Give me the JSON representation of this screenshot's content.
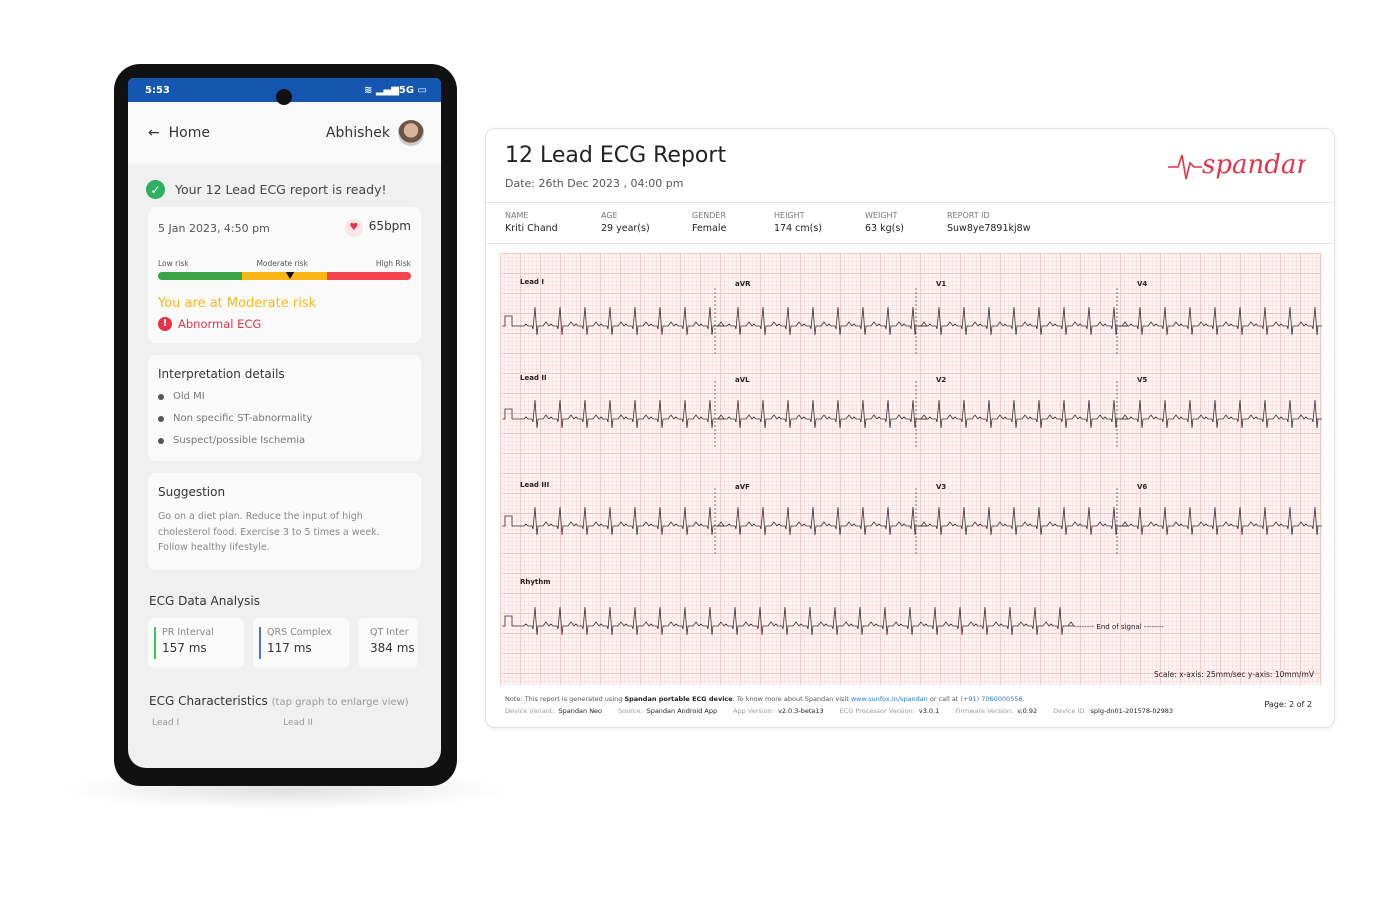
{
  "phone": {
    "status": {
      "time": "5:53",
      "network": "5G",
      "icons": [
        "wifi-icon",
        "signal-icon",
        "battery-icon"
      ]
    },
    "appbar": {
      "back_label": "Home",
      "user_name": "Abhishek"
    },
    "ready_message": "Your 12 Lead ECG report is ready!",
    "summary": {
      "datetime": "5 Jan 2023, 4:50 pm",
      "heart_rate": "65bpm",
      "risk_labels": [
        "Low risk",
        "Moderate risk",
        "High Risk"
      ],
      "risk_level_fraction": 0.52,
      "risk_text": "You are at Moderate risk",
      "ecg_status": "Abnormal ECG"
    },
    "interpretation": {
      "title": "Interpretation details",
      "items": [
        "Old MI",
        "Non specific ST-abnormality",
        "Suspect/possible Ischemia"
      ]
    },
    "suggestion": {
      "title": "Suggestion",
      "text": "Go on a diet plan. Reduce the input of high cholesterol food. Exercise 3 to 5 times a week. Follow healthy lifestyle."
    },
    "analysis": {
      "title": "ECG Data Analysis",
      "tiles": [
        {
          "label": "PR Interval",
          "value": "157 ms",
          "color": "#3cc45a"
        },
        {
          "label": "QRS Complex",
          "value": "117 ms",
          "color": "#4a78c8"
        },
        {
          "label": "QT Inter",
          "value": "384 ms",
          "color": "#f08a30"
        }
      ]
    },
    "characteristics": {
      "title": "ECG Characteristics",
      "hint": "(tap graph to enlarge view)",
      "leads": [
        "Lead I",
        "Lead II"
      ]
    }
  },
  "report": {
    "title": "12 Lead ECG Report",
    "date": "Date: 26th Dec 2023 , 04:00 pm",
    "logo_text": "spandan",
    "patient": [
      {
        "k": "NAME",
        "v": "Kriti Chand"
      },
      {
        "k": "AGE",
        "v": "29 year(s)"
      },
      {
        "k": "GENDER",
        "v": "Female"
      },
      {
        "k": "HEIGHT",
        "v": "174 cm(s)"
      },
      {
        "k": "WEIGHT",
        "v": "63 kg(s)"
      },
      {
        "k": "REPORT ID",
        "v": "Suw8ye7891kj8w"
      }
    ],
    "leads": [
      "Lead I",
      "aVR",
      "V1",
      "V4",
      "Lead II",
      "aVL",
      "V2",
      "V5",
      "Lead III",
      "aVF",
      "V3",
      "V6"
    ],
    "rhythm_label": "Rhythm",
    "end_signal": "-------- End of signal --------",
    "scale": "Scale: x-axis: 25mm/sec   y-axis: 10mm/mV",
    "note": {
      "pre": "Note: This report is generated using ",
      "device": "Spandan portable ECG device",
      "mid": ". To know more about Spandan visit ",
      "url": "www.sunfox.in/spandan",
      "mid2": " or call at ",
      "phone": "(+91) 7060000556",
      "end": "."
    },
    "meta": [
      {
        "k": "Device Variant:",
        "v": "Spandan Neo"
      },
      {
        "k": "Source:",
        "v": "Spandan Android App"
      },
      {
        "k": "App Version:",
        "v": "v2.0.3-beta13"
      },
      {
        "k": "ECG Processor Version:",
        "v": "v3.0.1"
      },
      {
        "k": "Firmware Version:",
        "v": "v.0.92"
      },
      {
        "k": "Device ID:",
        "v": "splg-dn01-201578-02983"
      }
    ],
    "page": "Page:  2  of  2",
    "colors": {
      "accent": "#e3344a",
      "grid": "#f6c7c7",
      "trace": "#333333"
    }
  }
}
